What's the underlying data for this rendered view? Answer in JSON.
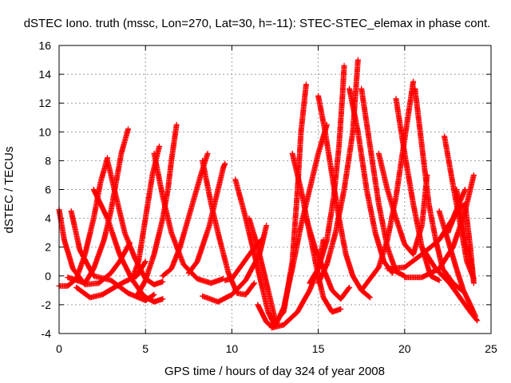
{
  "chart_data": {
    "type": "scatter",
    "title": "dSTEC Iono. truth (mssc, Lon=270, Lat=30, h=-11): STEC-STEC_elemax in phase cont.",
    "xlabel": "GPS time / hours of day 324 of year 2008",
    "ylabel": "dSTEC  / TECUs",
    "xlim": [
      0,
      25
    ],
    "ylim": [
      -4,
      16
    ],
    "xticks": [
      0,
      5,
      10,
      15,
      20,
      25
    ],
    "yticks": [
      -4,
      -2,
      0,
      2,
      4,
      6,
      8,
      10,
      12,
      14,
      16
    ],
    "grid": true,
    "marker": "+",
    "series_color": "#ff0000",
    "series": [
      {
        "x": [
          0.0,
          0.3,
          0.8,
          1.5,
          2.3,
          3.0,
          3.5,
          4.1
        ],
        "y": [
          4.6,
          2.5,
          0.5,
          -0.6,
          -0.5,
          0.2,
          1.0,
          2.3
        ]
      },
      {
        "x": [
          0.7,
          1.2,
          2.0,
          3.0,
          4.0,
          5.0,
          5.5
        ],
        "y": [
          4.5,
          1.8,
          0.0,
          -0.3,
          -1.2,
          -1.7,
          -1.3
        ]
      },
      {
        "x": [
          0.0,
          0.5,
          1.0,
          1.5,
          2.0,
          2.4,
          2.8
        ],
        "y": [
          -0.7,
          -0.7,
          -0.2,
          1.5,
          4.0,
          6.5,
          8.2
        ]
      },
      {
        "x": [
          0.5,
          1.5,
          2.0,
          2.6,
          3.0,
          3.3,
          3.6,
          4.0
        ],
        "y": [
          -0.1,
          -0.5,
          0.5,
          2.5,
          4.5,
          6.5,
          8.5,
          10.2
        ]
      },
      {
        "x": [
          1.0,
          1.8,
          2.5,
          3.2,
          3.8,
          4.5,
          5.0
        ],
        "y": [
          -0.8,
          -1.5,
          -1.3,
          -0.8,
          -0.4,
          0.0,
          1.0
        ]
      },
      {
        "x": [
          2.0,
          2.8,
          3.5,
          4.2,
          4.9,
          5.5,
          6.0
        ],
        "y": [
          6.0,
          4.0,
          1.5,
          -0.2,
          -1.4,
          -1.8,
          -1.6
        ]
      },
      {
        "x": [
          4.2,
          4.6,
          5.0,
          5.4,
          5.8
        ],
        "y": [
          -0.3,
          1.0,
          4.0,
          7.0,
          9.0
        ]
      },
      {
        "x": [
          4.5,
          5.0,
          5.5,
          6.0,
          6.3,
          6.5,
          6.8
        ],
        "y": [
          -1.4,
          -0.3,
          1.5,
          4.0,
          6.0,
          8.0,
          10.5
        ]
      },
      {
        "x": [
          2.8,
          3.3,
          3.8,
          4.4,
          5.0,
          5.5,
          6.0
        ],
        "y": [
          8.0,
          5.5,
          3.0,
          1.2,
          -0.2,
          -0.6,
          -0.4
        ]
      },
      {
        "x": [
          5.5,
          6.0,
          6.5,
          7.2,
          8.0,
          8.8,
          9.5
        ],
        "y": [
          8.5,
          5.5,
          3.0,
          0.8,
          -0.2,
          -0.5,
          -0.2
        ]
      },
      {
        "x": [
          6.0,
          6.5,
          7.0,
          7.6,
          8.2,
          8.6
        ],
        "y": [
          0.0,
          0.5,
          2.0,
          4.5,
          7.0,
          8.5
        ]
      },
      {
        "x": [
          7.5,
          8.0,
          8.7,
          9.2,
          9.5,
          9.6
        ],
        "y": [
          0.2,
          1.0,
          3.5,
          6.0,
          7.5,
          7.8
        ]
      },
      {
        "x": [
          8.3,
          8.8,
          9.3,
          9.8,
          10.3,
          10.8,
          11.3
        ],
        "y": [
          8.0,
          5.0,
          2.5,
          0.2,
          -1.2,
          -1.3,
          -0.5
        ]
      },
      {
        "x": [
          8.3,
          9.2,
          10.0,
          10.8,
          11.6,
          12.0
        ],
        "y": [
          -1.4,
          -1.8,
          -1.3,
          -0.3,
          1.5,
          3.5
        ]
      },
      {
        "x": [
          10.2,
          10.7,
          11.2,
          11.7,
          12.1,
          12.5
        ],
        "y": [
          6.7,
          4.5,
          2.0,
          -0.5,
          -2.5,
          -3.5
        ]
      },
      {
        "x": [
          9.6,
          10.0,
          10.6,
          11.2,
          11.7
        ],
        "y": [
          -0.3,
          -0.2,
          0.8,
          1.8,
          2.5
        ]
      },
      {
        "x": [
          11.0,
          11.5,
          12.0,
          12.5
        ],
        "y": [
          4.0,
          2.0,
          -0.5,
          -3.0
        ]
      },
      {
        "x": [
          11.5,
          12.0,
          12.3,
          13.0,
          13.5,
          13.8,
          14.0,
          14.3
        ],
        "y": [
          -2.0,
          -3.2,
          -3.5,
          -2.5,
          1.0,
          6.0,
          10.0,
          13.3
        ]
      },
      {
        "x": [
          12.5,
          13.0,
          13.5,
          14.0,
          14.5,
          15.0,
          15.5
        ],
        "y": [
          -3.5,
          -2.2,
          0.5,
          3.5,
          6.0,
          8.5,
          10.5
        ]
      },
      {
        "x": [
          13.5,
          14.0,
          14.5,
          15.0,
          15.3,
          15.8,
          16.3
        ],
        "y": [
          8.5,
          6.0,
          3.0,
          0.0,
          -1.5,
          -2.5,
          -2.3
        ]
      },
      {
        "x": [
          12.3,
          13.0,
          13.8,
          14.5,
          15.0,
          15.3
        ],
        "y": [
          -3.6,
          -3.4,
          -2.5,
          -1.0,
          0.5,
          2.5
        ]
      },
      {
        "x": [
          14.3,
          14.8,
          15.3,
          15.8,
          16.3,
          16.8
        ],
        "y": [
          4.0,
          2.0,
          0.5,
          -1.0,
          -1.6,
          -0.8
        ]
      },
      {
        "x": [
          14.5,
          15.0,
          15.5,
          15.9,
          16.2,
          16.4,
          16.5
        ],
        "y": [
          -0.5,
          0.5,
          2.5,
          5.5,
          9.0,
          12.5,
          14.6
        ]
      },
      {
        "x": [
          15.0,
          15.5,
          16.0,
          16.5,
          17.0,
          17.3
        ],
        "y": [
          -0.5,
          0.8,
          3.0,
          6.0,
          10.0,
          15.0
        ]
      },
      {
        "x": [
          15.0,
          15.4,
          15.8,
          16.2,
          16.6,
          17.0,
          17.5,
          18.0
        ],
        "y": [
          12.5,
          10.0,
          7.0,
          4.0,
          1.5,
          0.0,
          -1.0,
          -1.5
        ]
      },
      {
        "x": [
          16.8,
          17.3,
          17.8,
          18.3,
          18.8,
          19.3
        ],
        "y": [
          13.0,
          10.0,
          6.0,
          3.0,
          1.0,
          0.2
        ]
      },
      {
        "x": [
          17.5,
          18.0,
          18.5,
          19.0,
          19.5,
          20.0
        ],
        "y": [
          13.0,
          9.0,
          5.0,
          2.0,
          0.3,
          0.0
        ]
      },
      {
        "x": [
          17.5,
          18.0,
          18.5,
          19.0,
          19.5,
          20.0,
          20.5
        ],
        "y": [
          -1.0,
          -0.2,
          0.6,
          2.5,
          5.5,
          9.5,
          13.5
        ]
      },
      {
        "x": [
          18.5,
          19.0,
          19.5,
          20.0,
          20.5,
          21.0,
          21.3
        ],
        "y": [
          8.5,
          6.0,
          4.0,
          2.2,
          1.5,
          3.5,
          7.0
        ]
      },
      {
        "x": [
          19.5,
          20.0,
          20.5,
          21.0,
          21.5,
          22.0
        ],
        "y": [
          12.3,
          8.5,
          5.0,
          2.0,
          0.0,
          -0.3
        ]
      },
      {
        "x": [
          20.6,
          21.0,
          21.4,
          21.8,
          22.2,
          22.8,
          23.3
        ],
        "y": [
          13.0,
          9.0,
          5.0,
          2.5,
          0.5,
          -0.5,
          -1.0
        ]
      },
      {
        "x": [
          20.0,
          21.0,
          22.0,
          22.8,
          23.5,
          24.0
        ],
        "y": [
          -0.1,
          -0.1,
          0.5,
          2.0,
          4.5,
          7.0
        ]
      },
      {
        "x": [
          19.0,
          20.0,
          21.0,
          22.0,
          22.8,
          23.5
        ],
        "y": [
          0.5,
          0.6,
          1.5,
          2.5,
          4.0,
          6.0
        ]
      },
      {
        "x": [
          22.3,
          22.7,
          23.0,
          23.3,
          23.6,
          24.0
        ],
        "y": [
          9.7,
          7.0,
          5.0,
          3.0,
          1.0,
          -0.2
        ]
      },
      {
        "x": [
          23.0,
          23.3,
          23.6,
          23.9
        ],
        "y": [
          6.0,
          4.0,
          2.0,
          0.5
        ]
      },
      {
        "x": [
          21.0,
          21.8,
          22.6,
          23.2,
          23.8,
          24.2
        ],
        "y": [
          2.0,
          0.5,
          -0.5,
          -1.5,
          -2.5,
          -3.1
        ]
      },
      {
        "x": [
          22.0,
          22.5,
          23.0,
          23.4,
          23.8,
          24.1
        ],
        "y": [
          4.5,
          2.5,
          0.5,
          -1.0,
          -2.0,
          -2.8
        ]
      },
      {
        "x": [
          22.5,
          23.0,
          23.5,
          23.8,
          24.0
        ],
        "y": [
          3.0,
          4.5,
          5.0,
          2.0,
          -0.5
        ]
      }
    ]
  }
}
